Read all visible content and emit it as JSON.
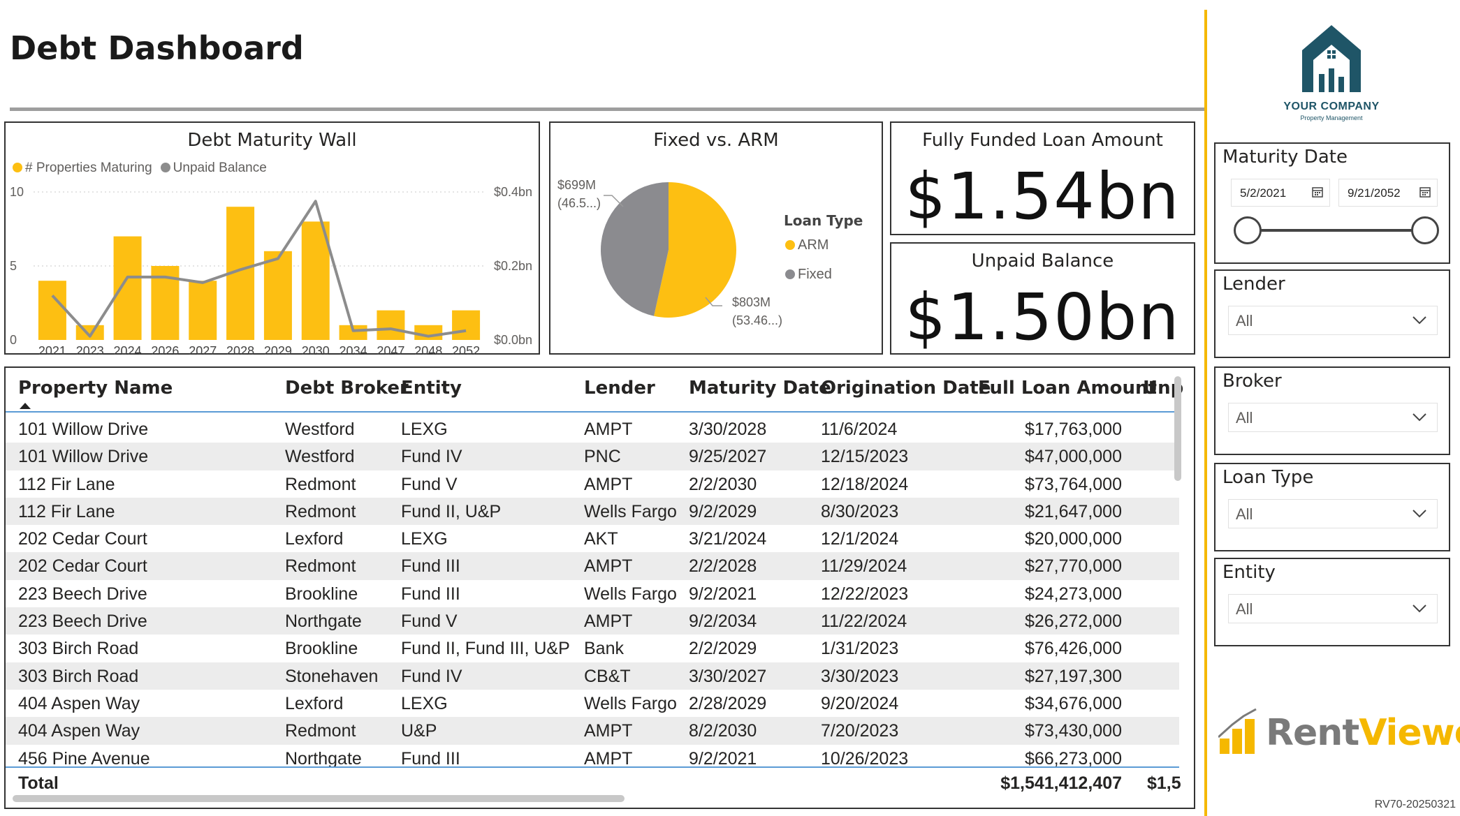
{
  "page": {
    "title": "Debt Dashboard",
    "version": "RV70-20250321"
  },
  "colors": {
    "accent": "#f5b800",
    "bar": "#fdbf12",
    "line": "#8c8c8c",
    "fixed": "#8b8b8f",
    "header_rule": "#5b9bd5",
    "brand_dark": "#1f5567"
  },
  "chart": {
    "title": "Debt Maturity Wall",
    "legend": [
      {
        "label": "# Properties Maturing",
        "color": "#fdbf12"
      },
      {
        "label": "Unpaid Balance",
        "color": "#8c8c8c"
      }
    ],
    "left_ticks": [
      "10",
      "5",
      "0"
    ],
    "right_ticks": [
      "$0.4bn",
      "$0.2bn",
      "$0.0bn"
    ]
  },
  "chart_data": {
    "type": "bar",
    "title": "Debt Maturity Wall",
    "categories": [
      "2021",
      "2023",
      "2024",
      "2026",
      "2027",
      "2028",
      "2029",
      "2030",
      "2034",
      "2047",
      "2048",
      "2052"
    ],
    "series": [
      {
        "name": "# Properties Maturing",
        "type": "bar",
        "axis": "left",
        "values": [
          4,
          1,
          7,
          5,
          4,
          9,
          6,
          8,
          1,
          2,
          1,
          2
        ]
      },
      {
        "name": "Unpaid Balance",
        "type": "line",
        "axis": "right",
        "unit": "bn",
        "values": [
          0.12,
          0.01,
          0.17,
          0.17,
          0.155,
          0.19,
          0.22,
          0.375,
          0.025,
          0.03,
          0.01,
          0.025
        ]
      }
    ],
    "ylim_left": [
      0,
      10
    ],
    "ylim_right": [
      0,
      0.4
    ],
    "grid": true,
    "legend_position": "top-left"
  },
  "pie": {
    "title": "Fixed vs. ARM",
    "legend_title": "Loan Type",
    "slices": [
      {
        "name": "ARM",
        "value": 803,
        "color": "#fdbf12",
        "label1": "$803M",
        "label2": "(53.46...)"
      },
      {
        "name": "Fixed",
        "value": 699,
        "color": "#8b8b8f",
        "label1": "$699M",
        "label2": "(46.5...)"
      }
    ]
  },
  "kpis": [
    {
      "title": "Fully Funded Loan Amount",
      "value": "$1.54bn"
    },
    {
      "title": "Unpaid Balance",
      "value": "$1.50bn"
    }
  ],
  "table": {
    "columns": [
      "Property Name",
      "Debt Broker",
      "Entity",
      "Lender",
      "Maturity Date",
      "Origination Date",
      "Full Loan Amount",
      "Unp"
    ],
    "rows": [
      [
        "101 Willow Drive",
        "Westford",
        "LEXG",
        "AMPT",
        "3/30/2028",
        "11/6/2024",
        "$17,763,000"
      ],
      [
        "101 Willow Drive",
        "Westford",
        "Fund IV",
        "PNC",
        "9/25/2027",
        "12/15/2023",
        "$47,000,000"
      ],
      [
        "112 Fir Lane",
        "Redmont",
        "Fund V",
        "AMPT",
        "2/2/2030",
        "12/18/2024",
        "$73,764,000"
      ],
      [
        "112 Fir Lane",
        "Redmont",
        "Fund II, U&P",
        "Wells Fargo",
        "9/2/2029",
        "8/30/2023",
        "$21,647,000"
      ],
      [
        "202 Cedar Court",
        "Lexford",
        "LEXG",
        "AKT",
        "3/21/2024",
        "12/1/2024",
        "$20,000,000"
      ],
      [
        "202 Cedar Court",
        "Redmont",
        "Fund III",
        "AMPT",
        "2/2/2028",
        "11/29/2024",
        "$27,770,000"
      ],
      [
        "223 Beech Drive",
        "Brookline",
        "Fund III",
        "Wells Fargo",
        "9/2/2021",
        "12/22/2023",
        "$24,273,000"
      ],
      [
        "223 Beech Drive",
        "Northgate",
        "Fund V",
        "AMPT",
        "9/2/2034",
        "11/22/2024",
        "$26,272,000"
      ],
      [
        "303 Birch Road",
        "Brookline",
        "Fund II, Fund III, U&P",
        "Bank",
        "2/2/2029",
        "1/31/2023",
        "$76,426,000"
      ],
      [
        "303 Birch Road",
        "Stonehaven",
        "Fund IV",
        "CB&T",
        "3/30/2027",
        "3/30/2023",
        "$27,197,300"
      ],
      [
        "404 Aspen Way",
        "Lexford",
        "LEXG",
        "Wells Fargo",
        "2/28/2029",
        "9/20/2024",
        "$34,676,000"
      ],
      [
        "404 Aspen Way",
        "Redmont",
        "U&P",
        "AMPT",
        "8/2/2030",
        "7/20/2023",
        "$73,430,000"
      ],
      [
        "456 Pine Avenue",
        "Northgate",
        "Fund III",
        "AMPT",
        "9/2/2021",
        "10/26/2023",
        "$66,273,000"
      ]
    ],
    "total": {
      "label": "Total",
      "full_loan_amount": "$1,541,412,407",
      "unpaid": "$1,5"
    }
  },
  "brand": {
    "company": "YOUR COMPANY",
    "tagline": "Property Management",
    "product_a": "Rent",
    "product_b": "Viewer"
  },
  "slicers": {
    "maturity_date": {
      "title": "Maturity Date",
      "start": "5/2/2021",
      "end": "9/21/2052"
    },
    "lender": {
      "title": "Lender",
      "value": "All"
    },
    "broker": {
      "title": "Broker",
      "value": "All"
    },
    "loan_type": {
      "title": "Loan Type",
      "value": "All"
    },
    "entity": {
      "title": "Entity",
      "value": "All"
    }
  }
}
